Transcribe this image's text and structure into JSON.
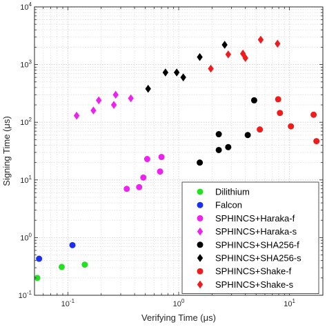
{
  "chart_data": {
    "type": "scatter",
    "xlabel": "Verifying Time (μs)",
    "ylabel": "Signing Time (μs)",
    "xscale": "log",
    "yscale": "log",
    "xlim": [
      0.05,
      20
    ],
    "ylim": [
      0.1,
      10000
    ],
    "grid": "major and minor, dotted",
    "legend_position": "bottom-right",
    "x_ticks": [
      {
        "value": 0.1,
        "base": "10",
        "exp": "-1"
      },
      {
        "value": 1,
        "base": "10",
        "exp": "0"
      },
      {
        "value": 10,
        "base": "10",
        "exp": "1"
      }
    ],
    "y_ticks": [
      {
        "value": 0.1,
        "base": "10",
        "exp": "-1"
      },
      {
        "value": 1,
        "base": "10",
        "exp": "0"
      },
      {
        "value": 10,
        "base": "10",
        "exp": "1"
      },
      {
        "value": 100,
        "base": "10",
        "exp": "2"
      },
      {
        "value": 1000,
        "base": "10",
        "exp": "3"
      },
      {
        "value": 10000,
        "base": "10",
        "exp": "4"
      }
    ],
    "series": [
      {
        "name": "Dilithium",
        "color": "#22e022",
        "marker": "circle",
        "points": [
          [
            0.053,
            0.2
          ],
          [
            0.088,
            0.31
          ],
          [
            0.142,
            0.34
          ]
        ]
      },
      {
        "name": "Falcon",
        "color": "#1a2ff0",
        "marker": "circle",
        "points": [
          [
            0.055,
            0.43
          ],
          [
            0.11,
            0.74
          ]
        ]
      },
      {
        "name": "SPHINCS+Haraka-f",
        "color": "#ee22ee",
        "marker": "circle",
        "points": [
          [
            0.34,
            7.0
          ],
          [
            0.44,
            7.5
          ],
          [
            0.48,
            11
          ],
          [
            0.52,
            23
          ],
          [
            0.68,
            14
          ],
          [
            0.7,
            25
          ]
        ]
      },
      {
        "name": "SPHINCS+Haraka-s",
        "color": "#ee22ee",
        "marker": "diamond",
        "points": [
          [
            0.12,
            130
          ],
          [
            0.17,
            160
          ],
          [
            0.19,
            240
          ],
          [
            0.26,
            200
          ],
          [
            0.27,
            300
          ],
          [
            0.37,
            260
          ]
        ]
      },
      {
        "name": "SPHINCS+SHA256-f",
        "color": "#000000",
        "marker": "circle",
        "points": [
          [
            1.55,
            20
          ],
          [
            2.3,
            33
          ],
          [
            2.3,
            62
          ],
          [
            2.8,
            37
          ],
          [
            4.2,
            60
          ],
          [
            4.8,
            240
          ]
        ]
      },
      {
        "name": "SPHINCS+SHA256-s",
        "color": "#000000",
        "marker": "diamond",
        "points": [
          [
            0.53,
            380
          ],
          [
            0.76,
            730
          ],
          [
            0.96,
            730
          ],
          [
            1.1,
            600
          ],
          [
            1.55,
            1350
          ],
          [
            2.6,
            2200
          ]
        ]
      },
      {
        "name": "SPHINCS+Shake-f",
        "color": "#ee1c1c",
        "marker": "circle",
        "points": [
          [
            5.4,
            75
          ],
          [
            7.9,
            250
          ],
          [
            8.2,
            145
          ],
          [
            10.3,
            85
          ],
          [
            16.5,
            135
          ],
          [
            17.5,
            47
          ]
        ]
      },
      {
        "name": "SPHINCS+Shake-s",
        "color": "#ee1c1c",
        "marker": "diamond",
        "points": [
          [
            1.95,
            850
          ],
          [
            2.8,
            1500
          ],
          [
            3.8,
            1550
          ],
          [
            4.0,
            1300
          ],
          [
            5.5,
            2700
          ],
          [
            7.8,
            2300
          ]
        ]
      }
    ]
  }
}
